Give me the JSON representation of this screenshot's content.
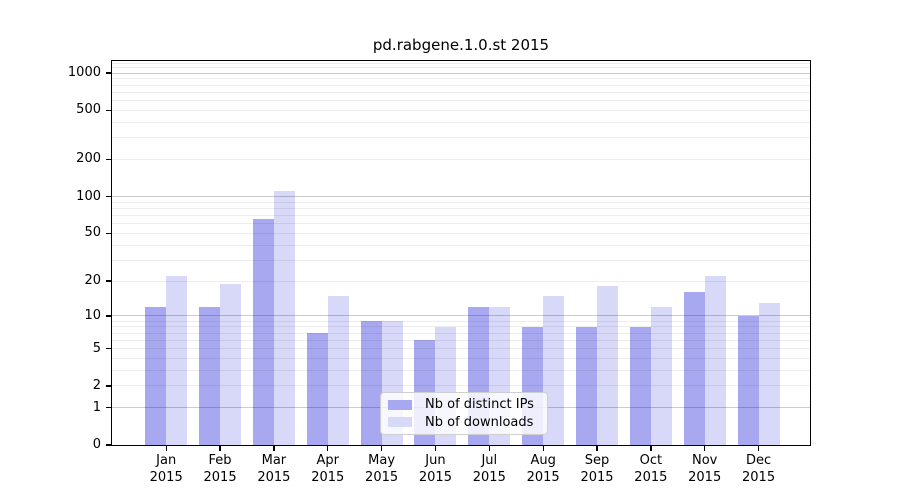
{
  "chart_data": {
    "type": "bar",
    "title": "pd.rabgene.1.0.st 2015",
    "categories": [
      "Jan",
      "Feb",
      "Mar",
      "Apr",
      "May",
      "Jun",
      "Jul",
      "Aug",
      "Sep",
      "Oct",
      "Nov",
      "Dec"
    ],
    "category_year": "2015",
    "series": [
      {
        "name": "Nb of distinct IPs",
        "color": "#a8a8f0",
        "values": [
          12,
          12,
          66,
          7,
          9,
          6,
          12,
          8,
          8,
          8,
          16,
          10
        ]
      },
      {
        "name": "Nb of downloads",
        "color": "#d8d8f8",
        "values": [
          22,
          19,
          110,
          15,
          9,
          8,
          12,
          15,
          18,
          12,
          22,
          13
        ]
      }
    ],
    "xlabel": "",
    "ylabel": "",
    "yscale": "log1p",
    "y_ticks": [
      0,
      1,
      2,
      5,
      10,
      20,
      50,
      100,
      200,
      500,
      1000
    ],
    "y_tick_labels": [
      "0",
      "1",
      "2",
      "5",
      "10",
      "20",
      "50",
      "100",
      "200",
      "500",
      "1000"
    ],
    "ylim": [
      0,
      1250
    ],
    "grid": {
      "orientation": "horizontal",
      "major_color": "#cccccc",
      "minor_color": "#ececec"
    },
    "legend": {
      "position": "lower-center-inside",
      "frame": true
    }
  }
}
